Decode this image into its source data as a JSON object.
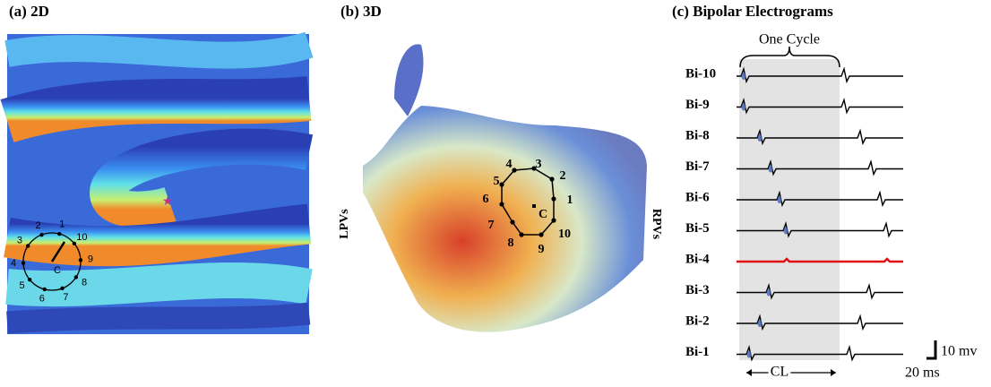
{
  "panels": [
    {
      "title": "(a) 2D",
      "center_label": "C",
      "electrode_labels": [
        "1",
        "2",
        "3",
        "4",
        "5",
        "6",
        "7",
        "8",
        "9",
        "10"
      ]
    },
    {
      "title": "(b) 3D",
      "left_label": "LPVs",
      "right_label": "RPVs",
      "center_label": "C",
      "electrode_labels": [
        "1",
        "2",
        "3",
        "4",
        "5",
        "6",
        "7",
        "8",
        "9",
        "10"
      ]
    },
    {
      "title": "(c) Bipolar Electrograms",
      "cycle_label": "One Cycle",
      "channels": [
        "Bi-10",
        "Bi-9",
        "Bi-8",
        "Bi-7",
        "Bi-6",
        "Bi-5",
        "Bi-4",
        "Bi-3",
        "Bi-2",
        "Bi-1"
      ],
      "cl_label": "CL",
      "scale_y_label": "10 mv",
      "scale_x_label": "20 ms"
    }
  ]
}
